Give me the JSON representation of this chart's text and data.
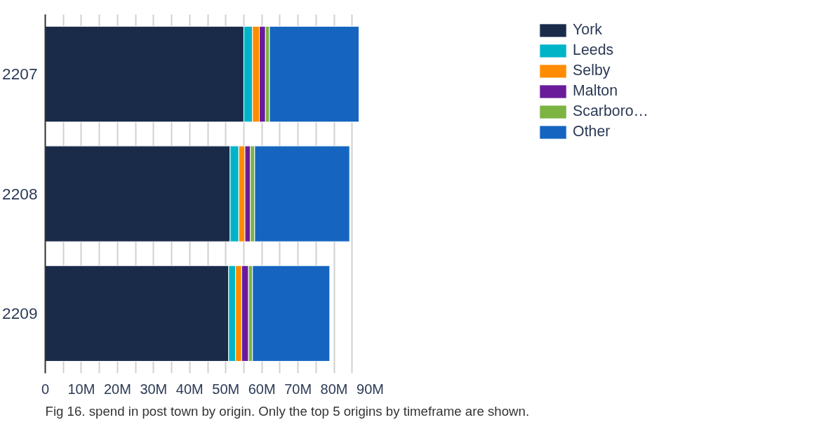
{
  "chart_data": {
    "type": "bar",
    "orientation": "horizontal",
    "stacked": true,
    "categories": [
      "2207",
      "2208",
      "2209"
    ],
    "series": [
      {
        "name": "York",
        "color": "#1a2b4a",
        "values": [
          55.0,
          51.2,
          50.8
        ]
      },
      {
        "name": "Leeds",
        "color": "#00b4c8",
        "values": [
          2.4,
          2.4,
          1.9
        ]
      },
      {
        "name": "Selby",
        "color": "#ff8c00",
        "values": [
          1.9,
          1.7,
          1.7
        ]
      },
      {
        "name": "Malton",
        "color": "#6a1b9a",
        "values": [
          1.7,
          1.5,
          1.9
        ]
      },
      {
        "name": "Scarboro…",
        "color": "#7cb342",
        "values": [
          1.1,
          1.2,
          1.1
        ]
      },
      {
        "name": "Other",
        "color": "#1565c0",
        "values": [
          24.8,
          26.3,
          21.4
        ]
      }
    ],
    "xlim": [
      0,
      90
    ],
    "xticks": [
      0,
      {
        "value": 5,
        "label": null
      },
      {
        "value": 10,
        "label": "10M"
      },
      {
        "value": 15,
        "label": null
      },
      {
        "value": 20,
        "label": "20M"
      },
      {
        "value": 25,
        "label": null
      },
      {
        "value": 30,
        "label": "30M"
      },
      {
        "value": 35,
        "label": null
      },
      {
        "value": 40,
        "label": "40M"
      },
      {
        "value": 45,
        "label": null
      },
      {
        "value": 50,
        "label": "50M"
      },
      {
        "value": 55,
        "label": null
      },
      {
        "value": 60,
        "label": "60M"
      },
      {
        "value": 65,
        "label": null
      },
      {
        "value": 70,
        "label": "70M"
      },
      {
        "value": 75,
        "label": null
      },
      {
        "value": 80,
        "label": "80M"
      },
      {
        "value": 85,
        "label": null
      },
      {
        "value": 90,
        "label": "90M"
      }
    ],
    "grid": "x",
    "legend": "top right",
    "annotations": [
      "Fig 16. spend in post town by origin. Only the top 5 origins by timeframe are shown."
    ]
  }
}
